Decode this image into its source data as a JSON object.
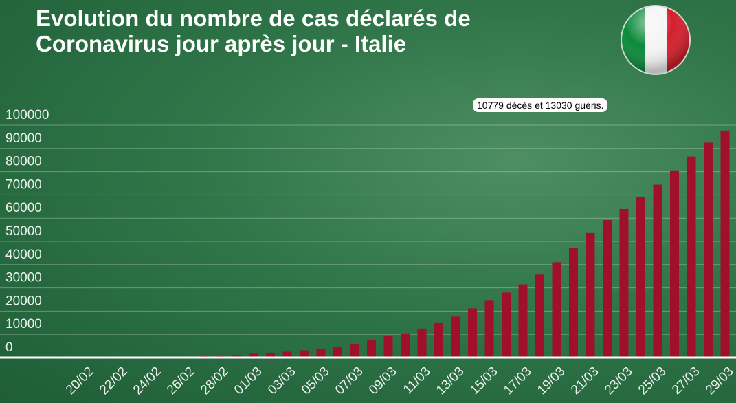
{
  "chart_data": {
    "type": "bar",
    "title": "Evolution du nombre de cas déclarés de Coronavirus jour après jour - Italie",
    "annotation": "10779 décès et 13030 guéris.",
    "categories": [
      "20/02",
      null,
      "22/02",
      null,
      "24/02",
      null,
      "26/02",
      null,
      "28/02",
      null,
      "01/03",
      null,
      "03/03",
      null,
      "05/03",
      null,
      "07/03",
      null,
      "09/03",
      null,
      "11/03",
      null,
      "13/03",
      null,
      "15/03",
      null,
      "17/03",
      null,
      "19/03",
      null,
      "21/03",
      null,
      "23/03",
      null,
      "25/03",
      null,
      "27/03",
      null,
      "29/03"
    ],
    "values": [
      3,
      20,
      79,
      152,
      229,
      322,
      400,
      650,
      888,
      1128,
      1694,
      2036,
      2502,
      3089,
      3858,
      4636,
      5883,
      7375,
      9172,
      10149,
      12462,
      15113,
      17660,
      21157,
      24747,
      27980,
      31506,
      35713,
      41035,
      47021,
      53578,
      59138,
      63927,
      69176,
      74386,
      80539,
      86498,
      92472,
      97689
    ],
    "color": "#a0102a",
    "ylim": [
      0,
      100000
    ],
    "yticks": [
      0,
      10000,
      20000,
      30000,
      40000,
      50000,
      60000,
      70000,
      80000,
      90000,
      100000
    ],
    "grid": true
  }
}
